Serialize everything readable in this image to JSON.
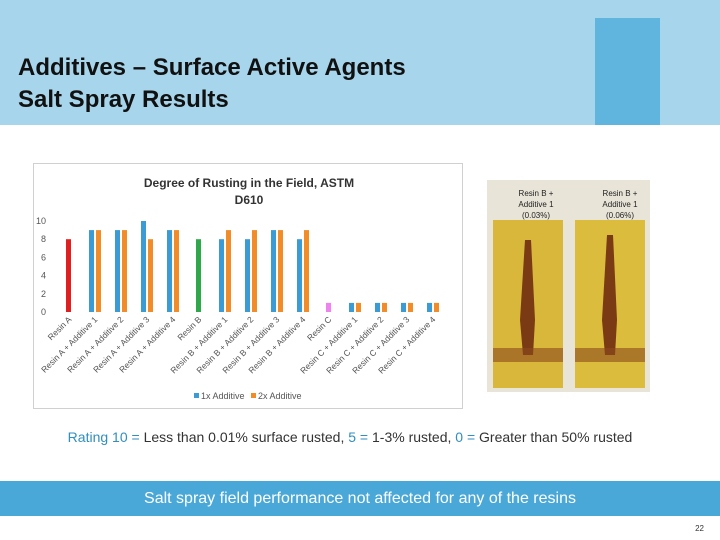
{
  "slide_title": [
    "Additives – Surface Active Agents",
    "Salt Spray Results"
  ],
  "chart_data": {
    "type": "bar",
    "title": "Degree of Rusting in the Field, ASTM D610",
    "categories": [
      "Resin A",
      "Resin A + Additive 1",
      "Resin A + Additive 2",
      "Resin A + Additive 3",
      "Resin A + Additive 4",
      "Resin B",
      "Resin B + Additive 1",
      "Resin B + Additive 2",
      "Resin B + Additive 3",
      "Resin B + Additive 4",
      "Resin C",
      "Resin C + Additive 1",
      "Resin C + Additive 2",
      "Resin C + Additive 3",
      "Resin C + Additive 4"
    ],
    "series": [
      {
        "name": "1x Additive",
        "color": "#3a9bd5",
        "values": [
          8,
          9,
          9,
          10,
          9,
          8,
          8,
          8,
          9,
          8,
          1,
          1,
          1,
          1,
          1
        ],
        "point_colors": [
          "#e02020",
          null,
          null,
          null,
          null,
          "#2ea84a",
          null,
          null,
          null,
          null,
          "#ee82ee",
          null,
          null,
          null,
          null
        ]
      },
      {
        "name": "2x Additive",
        "color": "#f28c28",
        "values": [
          null,
          9,
          9,
          8,
          9,
          null,
          9,
          9,
          9,
          9,
          null,
          1,
          1,
          1,
          1
        ]
      }
    ],
    "ylim": [
      0,
      10
    ],
    "yticks": [
      0,
      2,
      4,
      6,
      8,
      10
    ],
    "grid": false
  },
  "photo_labels": [
    "Resin B + Additive 1 (0.03%)",
    "Resin B + Additive 1 (0.06%)"
  ],
  "rating_note": [
    "Rating 10 = ",
    "Less than 0.01% surface rusted, ",
    "5 = ",
    "1-3% rusted, ",
    "0 = ",
    "Greater than 50% rusted"
  ],
  "banner": "Salt spray field performance not affected for any of the resins",
  "page_number": "22"
}
